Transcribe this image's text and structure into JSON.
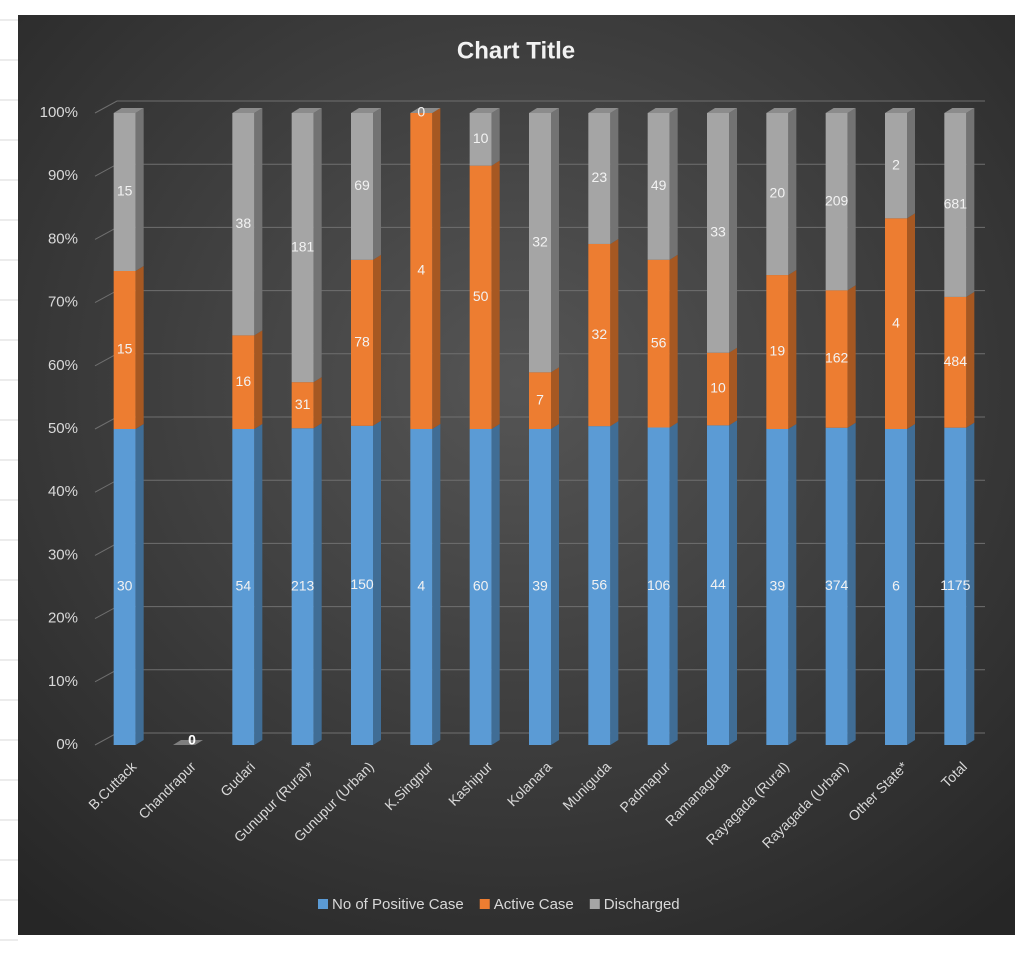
{
  "chart_data": {
    "type": "bar",
    "stacking": "percent",
    "title": "Chart Title",
    "categories": [
      "B.Cuttack",
      "Chandrapur",
      "Gudari",
      "Gunupur (Rural)*",
      "Gunupur (Urban)",
      "K.Singpur",
      "Kashipur",
      "Kolanara",
      "Muniguda",
      "Padmapur",
      "Ramanaguda",
      "Rayagada (Rural)",
      "Rayagada (Urban)",
      "Other State*",
      "Total"
    ],
    "series": [
      {
        "name": "No of Positive Case",
        "color": "#5b9bd5",
        "values": [
          30,
          0,
          54,
          213,
          150,
          4,
          60,
          39,
          56,
          106,
          44,
          39,
          374,
          6,
          1175
        ]
      },
      {
        "name": "Active Case",
        "color": "#ed7d31",
        "values": [
          15,
          null,
          16,
          31,
          78,
          4,
          50,
          7,
          32,
          56,
          10,
          19,
          162,
          4,
          484
        ]
      },
      {
        "name": "Discharged",
        "color": "#a5a5a5",
        "values": [
          15,
          null,
          38,
          181,
          69,
          0,
          10,
          32,
          23,
          49,
          33,
          20,
          209,
          2,
          681
        ]
      }
    ],
    "ylim": [
      0,
      100
    ],
    "yticks": [
      {
        "value": 0,
        "label": "0%"
      },
      {
        "value": 10,
        "label": "10%"
      },
      {
        "value": 20,
        "label": "20%"
      },
      {
        "value": 30,
        "label": "30%"
      },
      {
        "value": 40,
        "label": "40%"
      },
      {
        "value": 50,
        "label": "50%"
      },
      {
        "value": 60,
        "label": "60%"
      },
      {
        "value": 70,
        "label": "70%"
      },
      {
        "value": 80,
        "label": "80%"
      },
      {
        "value": 90,
        "label": "90%"
      },
      {
        "value": 100,
        "label": "100%"
      }
    ],
    "grid": true,
    "legend": "bottom"
  }
}
